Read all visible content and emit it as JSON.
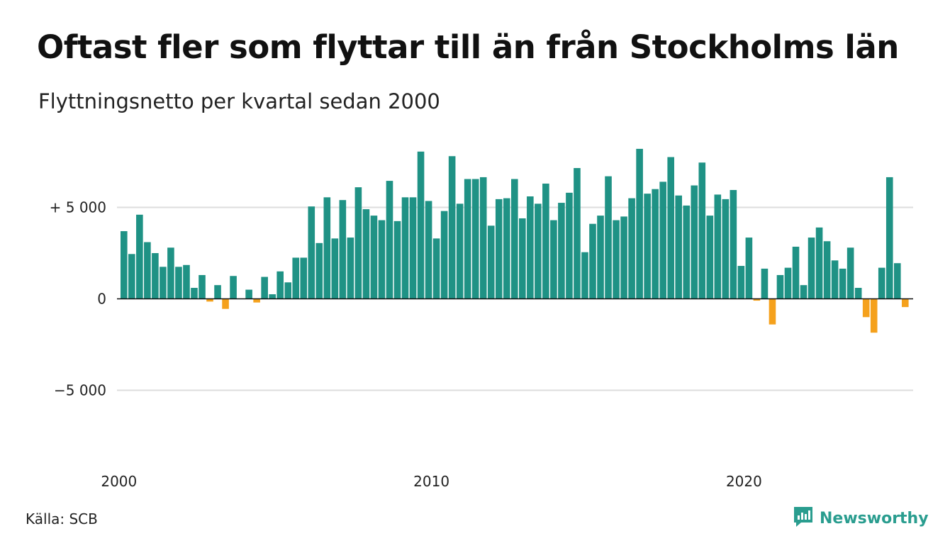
{
  "title": "Oftast fler som flyttar till än från Stockholms län",
  "subtitle": "Flyttningsnetto per kvartal sedan 2000",
  "source": "Källa: SCB",
  "brand": {
    "name": "Newsworthy",
    "icon": "newsworthy-logo-icon",
    "color": "#2a9d8f"
  },
  "chart_data": {
    "type": "bar",
    "x_start": "2000Q1",
    "frequency": "quarterly",
    "ylim": [
      -8000,
      9000
    ],
    "y_ticks": [
      5000,
      0,
      -5000
    ],
    "y_tick_labels": [
      "+ 5 000",
      "0",
      "−5 000"
    ],
    "x_ticks": [
      "2000",
      "2010",
      "2020"
    ],
    "grid": true,
    "positive_color": "#1f9285",
    "negative_color": "#f5a11c",
    "values": [
      3700,
      2450,
      4600,
      3100,
      2500,
      1750,
      2800,
      1750,
      1850,
      600,
      1300,
      -150,
      750,
      -550,
      1250,
      0,
      500,
      -200,
      1200,
      250,
      1500,
      900,
      2250,
      2250,
      5050,
      3050,
      5550,
      3300,
      5400,
      3350,
      6100,
      4900,
      4550,
      4300,
      6450,
      4250,
      5550,
      5550,
      8050,
      5350,
      3300,
      4800,
      7800,
      5200,
      6550,
      6550,
      6650,
      4000,
      5450,
      5500,
      6550,
      4400,
      5600,
      5200,
      6300,
      4300,
      5250,
      5800,
      7150,
      2550,
      4100,
      4550,
      6700,
      4300,
      4500,
      5500,
      8200,
      5750,
      6000,
      6400,
      7750,
      5650,
      5100,
      6200,
      7450,
      4550,
      5700,
      5450,
      5950,
      1800,
      3350,
      -100,
      1650,
      -1400,
      1300,
      1700,
      2850,
      750,
      3350,
      3900,
      3150,
      2100,
      1650,
      2800,
      600,
      -1000,
      -1850,
      1700,
      6650,
      1950,
      -450
    ]
  }
}
